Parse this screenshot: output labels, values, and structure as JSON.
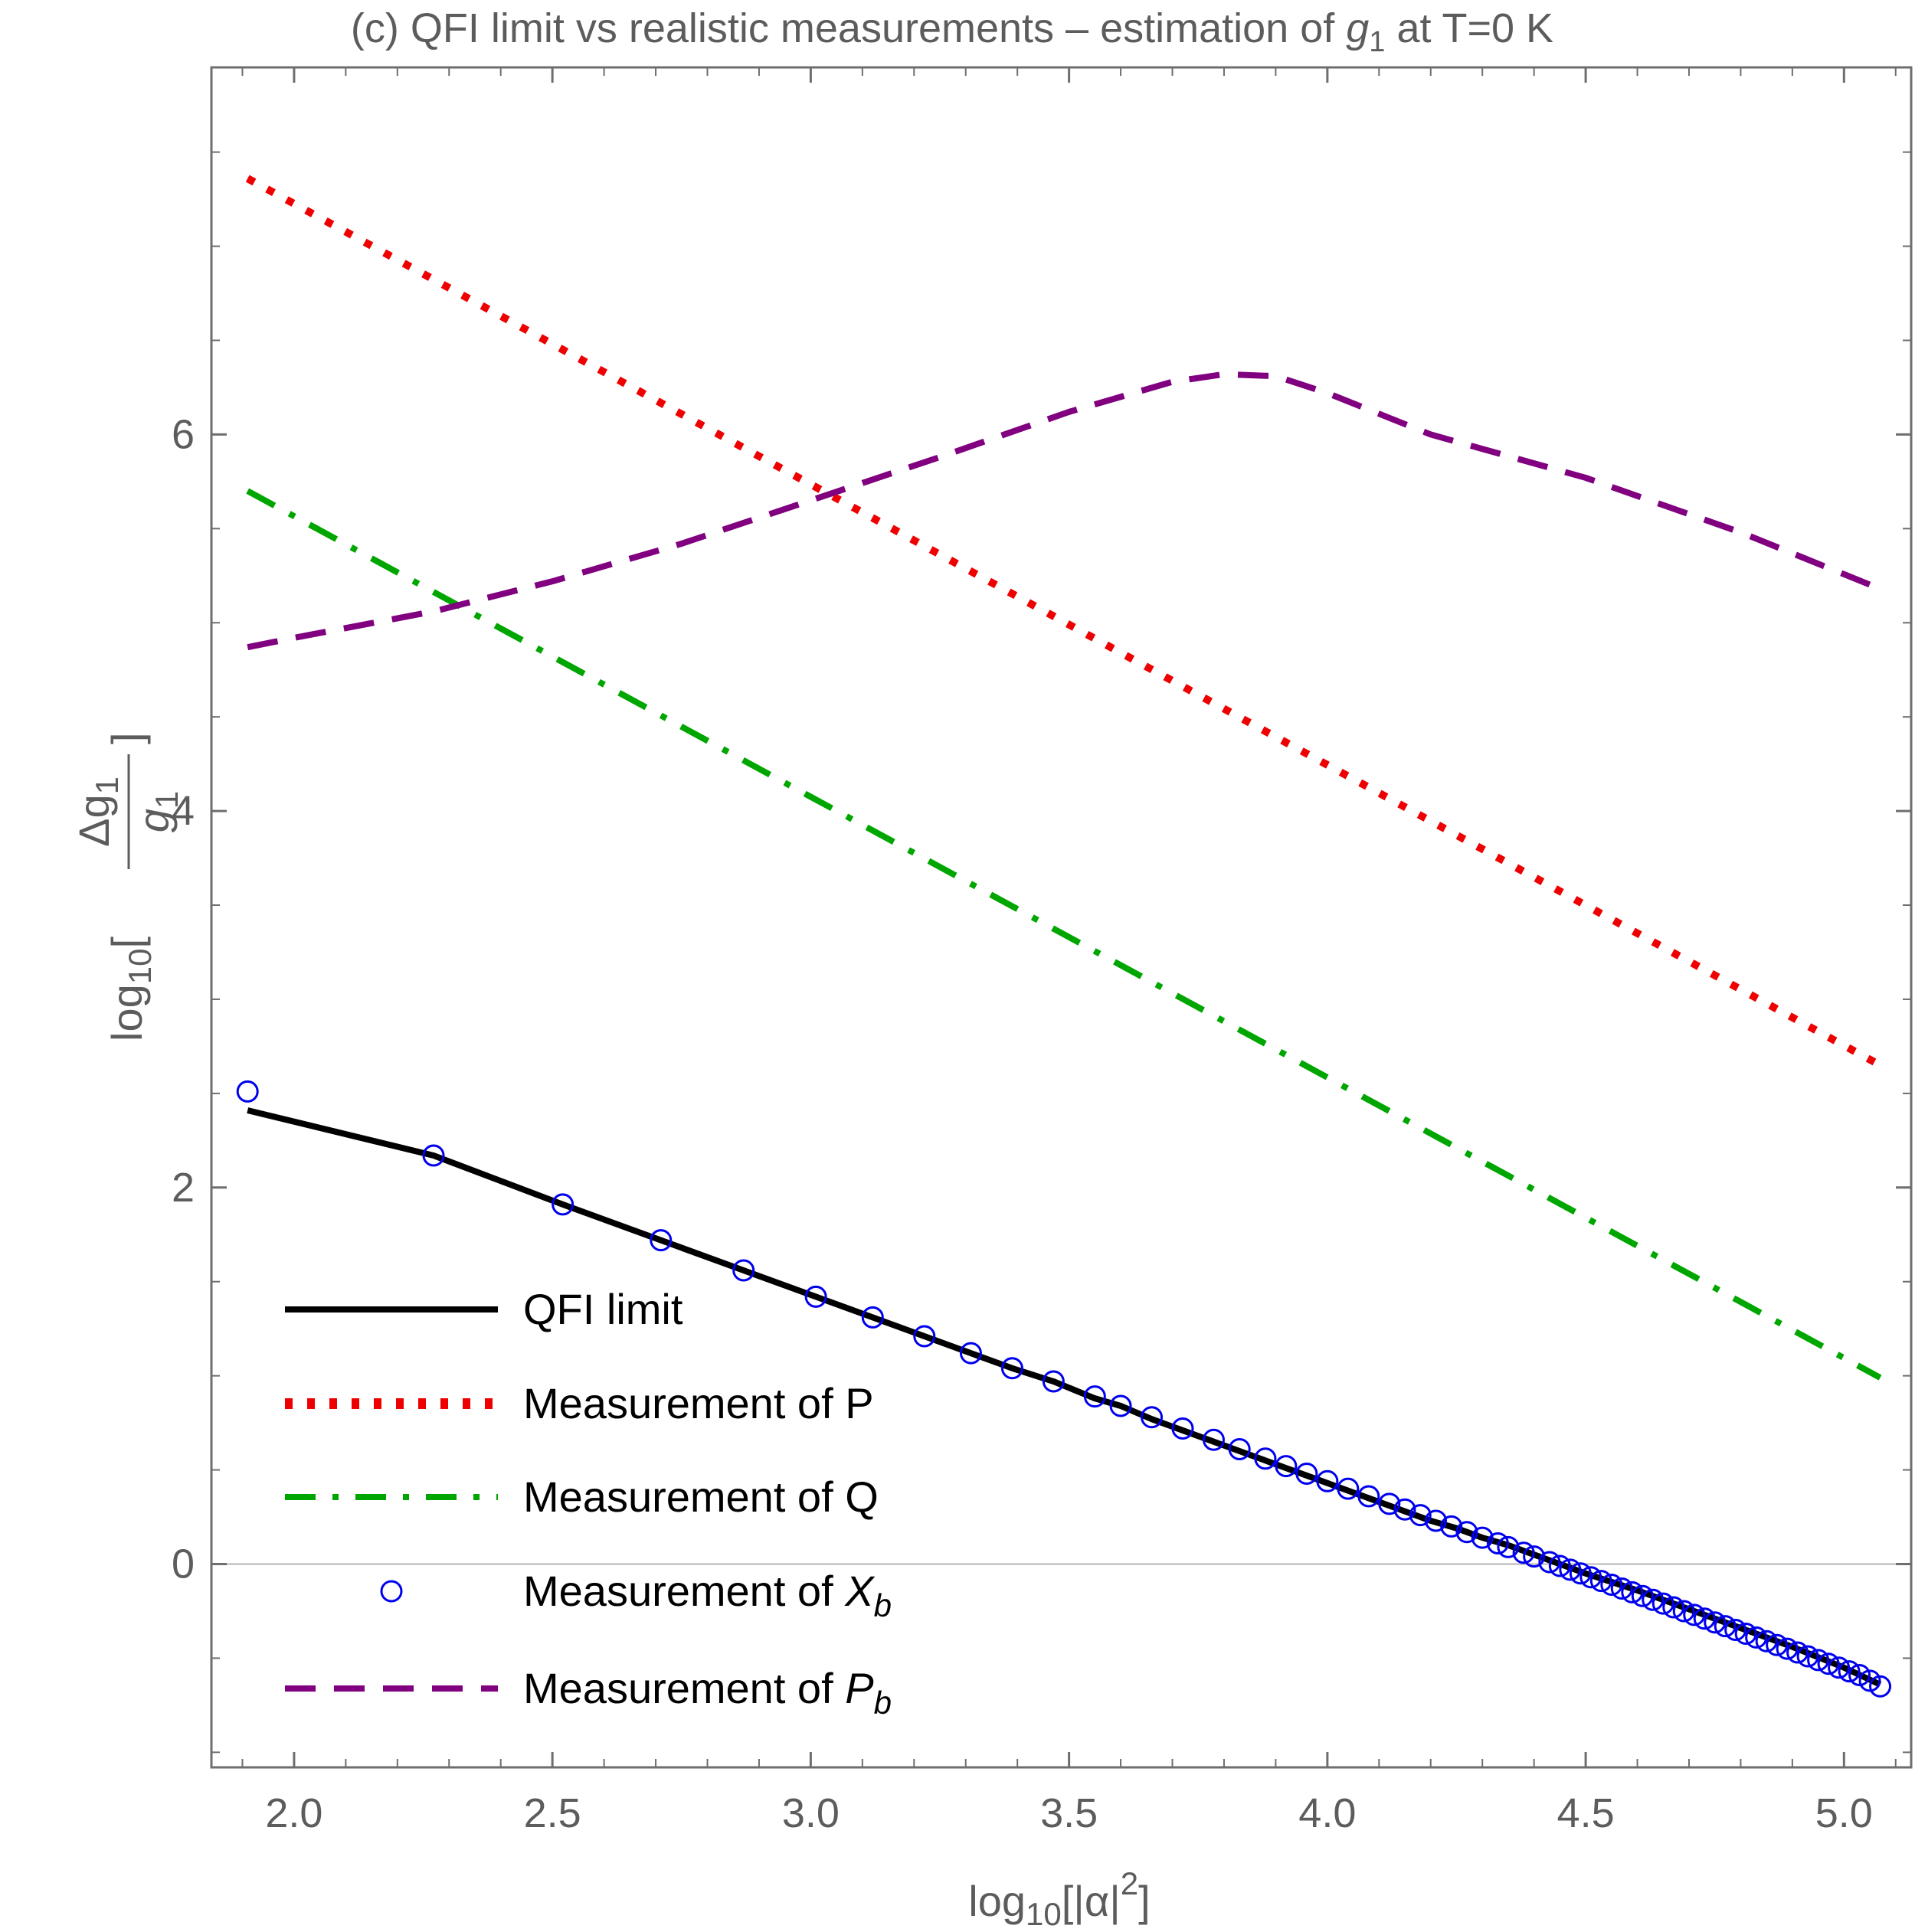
{
  "chart_data": {
    "type": "line",
    "title_main": "(c) QFI limit vs realistic measurements – estimation of ",
    "title_var": "g",
    "title_var_sub": "1",
    "title_tail": " at T=0 K",
    "xlabel": {
      "prefix": "log",
      "prefix_sub": "10",
      "body": "[|α|",
      "sup": "2",
      "close": "]"
    },
    "ylabel": {
      "prefix": "log",
      "prefix_sub": "10",
      "open": "[",
      "numerator": "Δg",
      "numerator_sub": "1",
      "denominator": "g",
      "denominator_sub": "1",
      "close": "]"
    },
    "xlim": [
      1.84,
      5.13
    ],
    "ylim": [
      -1.08,
      7.95
    ],
    "x_ticks": [
      2.0,
      2.5,
      3.0,
      3.5,
      4.0,
      4.5,
      5.0
    ],
    "x_tick_labels": [
      "2.0",
      "2.5",
      "3.0",
      "3.5",
      "4.0",
      "4.5",
      "5.0"
    ],
    "y_ticks": [
      0,
      2,
      4,
      6
    ],
    "y_tick_labels": [
      "0",
      "2",
      "4",
      "6"
    ],
    "grid": false,
    "zero_line": true,
    "legend_position": "bottom-left",
    "series": [
      {
        "name": "QFI limit",
        "style": "solid",
        "color": "#000000",
        "x": [
          1.91,
          2.27,
          2.52,
          2.71,
          2.87,
          3.01,
          3.12,
          3.22,
          3.31,
          3.39,
          3.47,
          3.55,
          3.6,
          3.66,
          3.72,
          3.78,
          3.83,
          3.88,
          3.92,
          3.96,
          4.0,
          4.04,
          4.08,
          4.12,
          4.16,
          4.2,
          4.25,
          4.3,
          4.35,
          4.4,
          4.5,
          4.6,
          4.7,
          4.8,
          4.9,
          5.0,
          5.07
        ],
        "y": [
          2.41,
          2.17,
          1.91,
          1.72,
          1.56,
          1.42,
          1.31,
          1.21,
          1.12,
          1.04,
          0.97,
          0.88,
          0.84,
          0.77,
          0.71,
          0.65,
          0.6,
          0.55,
          0.51,
          0.47,
          0.43,
          0.39,
          0.35,
          0.31,
          0.27,
          0.23,
          0.19,
          0.14,
          0.1,
          0.05,
          -0.05,
          -0.14,
          -0.24,
          -0.34,
          -0.44,
          -0.55,
          -0.64
        ]
      },
      {
        "name": "Measurement of P",
        "style": "dotted",
        "color": "#ee0000",
        "x": [
          1.91,
          5.07
        ],
        "y": [
          7.36,
          2.65
        ]
      },
      {
        "name": "Measurement of Q",
        "style": "dashdot",
        "color": "#00a600",
        "x": [
          1.91,
          5.07
        ],
        "y": [
          5.7,
          0.99
        ]
      },
      {
        "name": "Measurement of X",
        "name_sub": "b",
        "style": "markers",
        "color": "#0000ee",
        "x": [
          1.91,
          2.27,
          2.52,
          2.71,
          2.87,
          3.01,
          3.12,
          3.22,
          3.31,
          3.39,
          3.47,
          3.55,
          3.6,
          3.66,
          3.72,
          3.78,
          3.83,
          3.88,
          3.92,
          3.96,
          4.0,
          4.04,
          4.08,
          4.12,
          4.15,
          4.18,
          4.21,
          4.24,
          4.27,
          4.3,
          4.33,
          4.35,
          4.38,
          4.4,
          4.43,
          4.45,
          4.47,
          4.49,
          4.51,
          4.53,
          4.55,
          4.57,
          4.59,
          4.61,
          4.63,
          4.65,
          4.67,
          4.69,
          4.71,
          4.73,
          4.75,
          4.77,
          4.79,
          4.81,
          4.83,
          4.85,
          4.87,
          4.89,
          4.91,
          4.93,
          4.95,
          4.97,
          4.99,
          5.01,
          5.03,
          5.05,
          5.07
        ],
        "y": [
          2.51,
          2.17,
          1.91,
          1.72,
          1.56,
          1.42,
          1.31,
          1.21,
          1.12,
          1.04,
          0.97,
          0.89,
          0.84,
          0.78,
          0.72,
          0.66,
          0.61,
          0.56,
          0.52,
          0.48,
          0.44,
          0.4,
          0.36,
          0.32,
          0.29,
          0.26,
          0.23,
          0.2,
          0.17,
          0.14,
          0.11,
          0.09,
          0.06,
          0.04,
          0.01,
          -0.01,
          -0.03,
          -0.05,
          -0.07,
          -0.09,
          -0.11,
          -0.13,
          -0.15,
          -0.17,
          -0.19,
          -0.21,
          -0.23,
          -0.25,
          -0.27,
          -0.29,
          -0.31,
          -0.33,
          -0.35,
          -0.37,
          -0.39,
          -0.41,
          -0.43,
          -0.45,
          -0.47,
          -0.49,
          -0.51,
          -0.53,
          -0.55,
          -0.57,
          -0.59,
          -0.62,
          -0.65
        ]
      },
      {
        "name": "Measurement of P",
        "name_sub": "b",
        "style": "dashed",
        "color": "#800080",
        "x": [
          1.91,
          2.0,
          2.27,
          2.5,
          2.75,
          3.0,
          3.25,
          3.5,
          3.7,
          3.8,
          3.9,
          4.0,
          4.2,
          4.5,
          4.8,
          5.07
        ],
        "y": [
          4.87,
          4.92,
          5.06,
          5.22,
          5.42,
          5.65,
          5.88,
          6.12,
          6.28,
          6.32,
          6.31,
          6.22,
          6.0,
          5.77,
          5.48,
          5.18
        ]
      }
    ]
  }
}
